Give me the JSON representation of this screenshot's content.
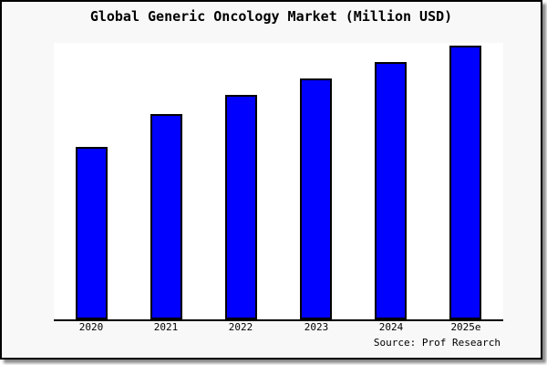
{
  "chart_data": {
    "type": "bar",
    "title": "Global Generic Oncology Market (Million USD)",
    "categories": [
      "2020",
      "2021",
      "2022",
      "2023",
      "2024",
      "2025e"
    ],
    "values": [
      63,
      75,
      82,
      88,
      94,
      100
    ],
    "values_note": "y-axis has no tick labels; values are relative estimates read from bar heights with 2025e = 100",
    "xlabel": "",
    "ylabel": "",
    "ylim": [
      0,
      101
    ],
    "grid": false,
    "legend": "none",
    "source_text": "Source: Prof Research",
    "colors": {
      "bar_fill": "#0000ff",
      "bar_border": "#000000",
      "plot_background": "#ffffff",
      "frame_background": "#f8f8f8",
      "frame_border": "#000000",
      "text": "#000000"
    }
  }
}
